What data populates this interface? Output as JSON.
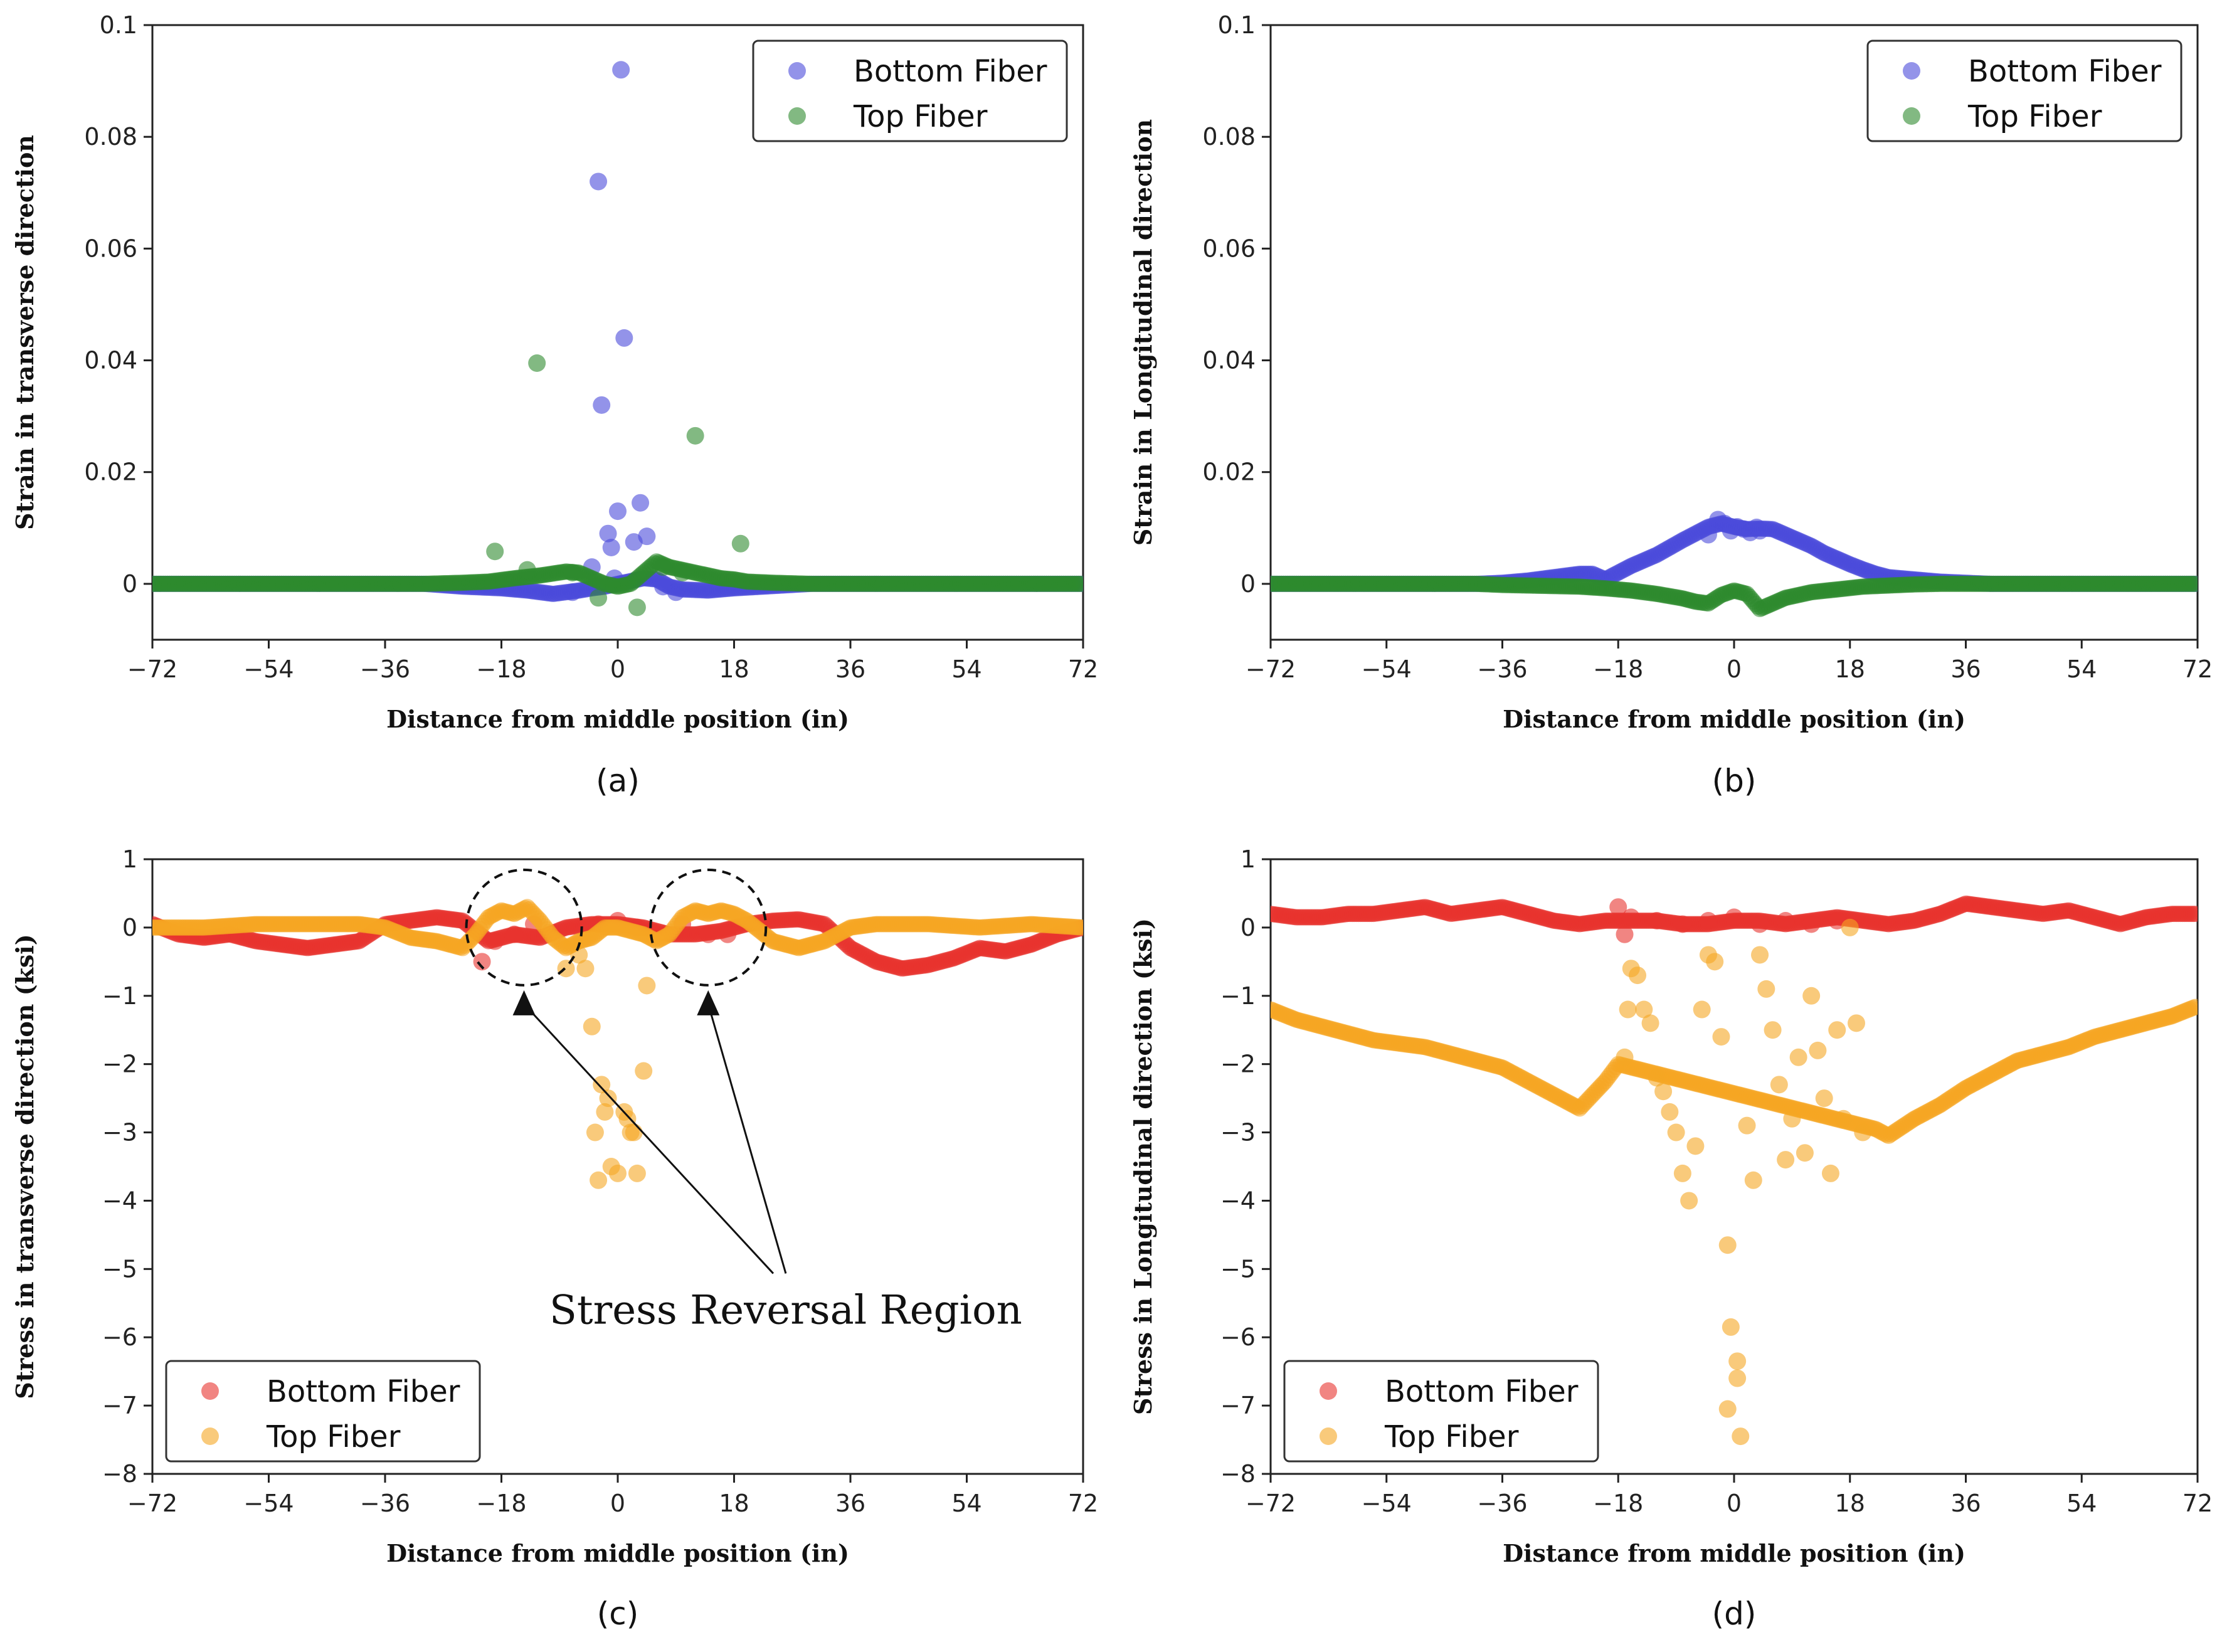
{
  "figure": {
    "captions": [
      "(a)",
      "(b)",
      "(c)",
      "(d)"
    ],
    "annotation": "Stress Reversal Region"
  },
  "chart_data": [
    {
      "type": "scatter",
      "caption": "(a)",
      "xlabel": "Distance from middle position (in)",
      "ylabel": "Strain in transverse direction",
      "xlim": [
        -72,
        72
      ],
      "ylim": [
        -0.01,
        0.1
      ],
      "xticks": [
        -72,
        -54,
        -36,
        -18,
        0,
        18,
        36,
        54,
        72
      ],
      "yticks": [
        0,
        0.02,
        0.04,
        0.06,
        0.08,
        0.1
      ],
      "ytick_labels": [
        "0",
        "0.02",
        "0.04",
        "0.06",
        "0.08",
        "0.1"
      ],
      "legend_position": "top-right",
      "series": [
        {
          "name": "Bottom Fiber",
          "color": "#4b4bdb",
          "x": [
            0.5,
            -3,
            1,
            -2.5,
            0,
            -1.5,
            -1,
            3.5,
            4.5,
            2.5,
            -0.5,
            -4,
            -7,
            7,
            9
          ],
          "y": [
            0.092,
            0.072,
            0.044,
            0.032,
            0.013,
            0.009,
            0.0065,
            0.0145,
            0.0085,
            0.0075,
            0.001,
            0.003,
            -0.0015,
            -0.0005,
            -0.0015
          ],
          "curve": {
            "x": [
              -72,
              -30,
              -24,
              -18,
              -14,
              -10,
              -8,
              -6,
              -4,
              -2,
              0,
              2,
              4,
              6,
              8,
              10,
              14,
              18,
              24,
              30,
              72
            ],
            "y": [
              0,
              0,
              -0.0005,
              -0.0008,
              -0.0012,
              -0.0018,
              -0.0015,
              -0.0012,
              -0.0008,
              -0.0005,
              0,
              0.0005,
              0.001,
              0.0008,
              -0.0005,
              -0.001,
              -0.0012,
              -0.0008,
              -0.0004,
              0,
              0
            ]
          }
        },
        {
          "name": "Top Fiber",
          "color": "#2e8b2e",
          "x": [
            -12.5,
            12,
            -19,
            19,
            -3,
            3,
            -14,
            -7,
            7,
            10
          ],
          "y": [
            0.0395,
            0.0265,
            0.0058,
            0.0072,
            -0.0025,
            -0.0042,
            0.0025,
            0.002,
            0.003,
            0.002
          ],
          "curve": {
            "x": [
              -72,
              -30,
              -24,
              -20,
              -16,
              -12,
              -8,
              -6,
              -4,
              -2,
              0,
              2,
              4,
              6,
              8,
              10,
              12,
              14,
              16,
              18,
              20,
              24,
              30,
              72
            ],
            "y": [
              0,
              0,
              0.0002,
              0.0004,
              0.001,
              0.0015,
              0.0022,
              0.002,
              0.001,
              0,
              -0.0005,
              0,
              0.002,
              0.004,
              0.003,
              0.0025,
              0.002,
              0.0015,
              0.001,
              0.0008,
              0.0004,
              0.0002,
              0,
              0
            ]
          }
        }
      ]
    },
    {
      "type": "scatter",
      "caption": "(b)",
      "xlabel": "Distance from middle position (in)",
      "ylabel": "Strain in Longitudinal direction",
      "xlim": [
        -72,
        72
      ],
      "ylim": [
        -0.01,
        0.1
      ],
      "xticks": [
        -72,
        -54,
        -36,
        -18,
        0,
        18,
        36,
        54,
        72
      ],
      "yticks": [
        0,
        0.02,
        0.04,
        0.06,
        0.08,
        0.1
      ],
      "ytick_labels": [
        "0",
        "0.02",
        "0.04",
        "0.06",
        "0.08",
        "0.1"
      ],
      "legend_position": "top-right",
      "series": [
        {
          "name": "Bottom Fiber",
          "color": "#4b4bdb",
          "x": [
            -2.5,
            -1.5,
            -0.5,
            0.5,
            1.5,
            2.5,
            3.5,
            -4,
            4
          ],
          "y": [
            0.0115,
            0.0108,
            0.0095,
            0.0102,
            0.0098,
            0.0092,
            0.0101,
            0.0088,
            0.0095
          ],
          "curve": {
            "x": [
              -72,
              -40,
              -36,
              -32,
              -28,
              -24,
              -22,
              -20,
              -18,
              -16,
              -14,
              -12,
              -10,
              -8,
              -6,
              -4,
              -2,
              0,
              2,
              4,
              6,
              8,
              10,
              12,
              14,
              16,
              18,
              20,
              22,
              24,
              28,
              32,
              36,
              40,
              72
            ],
            "y": [
              0,
              0,
              0.0002,
              0.0006,
              0.0012,
              0.0018,
              0.0018,
              0.0008,
              0.002,
              0.0032,
              0.0042,
              0.0052,
              0.0065,
              0.0078,
              0.009,
              0.0102,
              0.0108,
              0.0102,
              0.0098,
              0.0099,
              0.0098,
              0.0088,
              0.0078,
              0.0068,
              0.0055,
              0.0045,
              0.0035,
              0.0026,
              0.0018,
              0.0012,
              0.0008,
              0.0004,
              0.0002,
              0,
              0
            ]
          }
        },
        {
          "name": "Top Fiber",
          "color": "#2e8b2e",
          "x": [],
          "y": [],
          "curve": {
            "x": [
              -72,
              -40,
              -36,
              -32,
              -28,
              -24,
              -20,
              -16,
              -12,
              -8,
              -6,
              -4,
              -2,
              0,
              2,
              4,
              6,
              8,
              12,
              16,
              20,
              24,
              28,
              32,
              72
            ],
            "y": [
              0,
              0,
              -0.0002,
              -0.0003,
              -0.0004,
              -0.0005,
              -0.0008,
              -0.0012,
              -0.0018,
              -0.0026,
              -0.0032,
              -0.0035,
              -0.002,
              -0.0012,
              -0.0018,
              -0.0045,
              -0.0035,
              -0.0025,
              -0.0015,
              -0.001,
              -0.0005,
              -0.0003,
              -0.0001,
              0,
              0
            ]
          }
        }
      ]
    },
    {
      "type": "scatter",
      "caption": "(c)",
      "xlabel": "Distance from middle position (in)",
      "ylabel": "Stress in transverse direction (ksi)",
      "xlim": [
        -72,
        72
      ],
      "ylim": [
        -8,
        1
      ],
      "xticks": [
        -72,
        -54,
        -36,
        -18,
        0,
        18,
        36,
        54,
        72
      ],
      "yticks": [
        -8,
        -7,
        -6,
        -5,
        -4,
        -3,
        -2,
        -1,
        0,
        1
      ],
      "ytick_labels": [
        "−8",
        "−7",
        "−6",
        "−5",
        "−4",
        "−3",
        "−2",
        "−1",
        "0",
        "1"
      ],
      "legend_position": "bottom-left",
      "annotation": {
        "text": "Stress Reversal Region",
        "circles_at": [
          [
            -14.5,
            0
          ],
          [
            14,
            0
          ]
        ],
        "text_at": [
          26,
          -5.8
        ]
      },
      "series": [
        {
          "name": "Bottom Fiber",
          "color": "#e8332e",
          "x": [
            -21,
            -19,
            -16,
            -13,
            -3,
            0,
            3,
            10,
            14,
            17
          ],
          "y": [
            -0.5,
            -0.2,
            -0.1,
            0.05,
            0.05,
            0.1,
            0,
            0.05,
            -0.1,
            -0.1
          ],
          "curve": {
            "x": [
              -72,
              -68,
              -64,
              -60,
              -56,
              -52,
              -48,
              -44,
              -40,
              -36,
              -32,
              -28,
              -24,
              -20,
              -16,
              -12,
              -8,
              -4,
              0,
              4,
              8,
              12,
              16,
              20,
              24,
              28,
              32,
              36,
              40,
              44,
              48,
              52,
              56,
              60,
              64,
              68,
              72
            ],
            "y": [
              0.05,
              -0.1,
              -0.15,
              -0.1,
              -0.2,
              -0.25,
              -0.3,
              -0.25,
              -0.2,
              0.05,
              0.1,
              0.15,
              0.1,
              -0.2,
              -0.1,
              -0.15,
              0,
              0.05,
              0.05,
              0,
              -0.1,
              -0.1,
              -0.05,
              0.05,
              0.1,
              0.12,
              0.05,
              -0.3,
              -0.5,
              -0.6,
              -0.55,
              -0.45,
              -0.3,
              -0.35,
              -0.25,
              -0.1,
              0.0
            ]
          }
        },
        {
          "name": "Top Fiber",
          "color": "#f5a623",
          "x": [
            -4,
            -3,
            -3.5,
            -2,
            -1,
            0,
            1,
            2,
            3,
            4,
            -2.5,
            -1.5,
            1.5,
            2.5,
            -5,
            4.5,
            -8,
            -6
          ],
          "y": [
            -1.45,
            -3.7,
            -3.0,
            -2.7,
            -3.5,
            -3.6,
            -2.7,
            -3.0,
            -3.6,
            -2.1,
            -2.3,
            -2.5,
            -2.8,
            -3.0,
            -0.6,
            -0.85,
            -0.6,
            -0.4
          ],
          "curve": {
            "x": [
              -72,
              -64,
              -56,
              -48,
              -40,
              -36,
              -32,
              -28,
              -26,
              -24,
              -22,
              -20,
              -18,
              -16,
              -14,
              -12,
              -10,
              -8,
              -6,
              -4,
              -2,
              0,
              2,
              4,
              6,
              8,
              10,
              12,
              14,
              16,
              18,
              20,
              22,
              24,
              26,
              28,
              32,
              36,
              40,
              48,
              56,
              64,
              72
            ],
            "y": [
              0,
              0,
              0.05,
              0.05,
              0.05,
              0,
              -0.15,
              -0.2,
              -0.25,
              -0.3,
              -0.1,
              0.15,
              0.25,
              0.2,
              0.3,
              0.1,
              -0.15,
              -0.3,
              -0.2,
              -0.15,
              0,
              0,
              -0.05,
              -0.1,
              -0.2,
              -0.1,
              0.15,
              0.25,
              0.2,
              0.25,
              0.2,
              0.1,
              -0.05,
              -0.2,
              -0.25,
              -0.3,
              -0.2,
              0,
              0.05,
              0.05,
              0,
              0.05,
              0
            ]
          }
        }
      ]
    },
    {
      "type": "scatter",
      "caption": "(d)",
      "xlabel": "Distance from middle position (in)",
      "ylabel": "Stress in Longitudinal direction (ksi)",
      "xlim": [
        -72,
        72
      ],
      "ylim": [
        -8,
        1
      ],
      "xticks": [
        -72,
        -54,
        -36,
        -18,
        0,
        18,
        36,
        54,
        72
      ],
      "yticks": [
        -8,
        -7,
        -6,
        -5,
        -4,
        -3,
        -2,
        -1,
        0,
        1
      ],
      "ytick_labels": [
        "−8",
        "−7",
        "−6",
        "−5",
        "−4",
        "−3",
        "−2",
        "−1",
        "0",
        "1"
      ],
      "legend_position": "bottom-left",
      "series": [
        {
          "name": "Bottom Fiber",
          "color": "#e8332e",
          "x": [
            -18,
            -17,
            -16,
            -12,
            -8,
            -4,
            0,
            4,
            8,
            12,
            16
          ],
          "y": [
            0.3,
            -0.1,
            0.15,
            0.1,
            0.05,
            0.1,
            0.15,
            0.05,
            0.1,
            0.05,
            0.1
          ],
          "curve": {
            "x": [
              -72,
              -68,
              -64,
              -60,
              -56,
              -52,
              -48,
              -44,
              -40,
              -36,
              -32,
              -28,
              -24,
              -20,
              -16,
              -12,
              -8,
              -4,
              0,
              4,
              8,
              12,
              16,
              20,
              24,
              28,
              32,
              36,
              40,
              44,
              48,
              52,
              56,
              60,
              64,
              68,
              72
            ],
            "y": [
              0.2,
              0.15,
              0.15,
              0.2,
              0.2,
              0.25,
              0.3,
              0.2,
              0.25,
              0.3,
              0.2,
              0.1,
              0.05,
              0.1,
              0.1,
              0.1,
              0.05,
              0.05,
              0.1,
              0.1,
              0.05,
              0.1,
              0.15,
              0.1,
              0.05,
              0.1,
              0.2,
              0.35,
              0.3,
              0.25,
              0.2,
              0.25,
              0.15,
              0.05,
              0.15,
              0.2,
              0.2
            ]
          }
        },
        {
          "name": "Top Fiber",
          "color": "#f5a623",
          "x": [
            -1,
            -0.5,
            0.5,
            -1,
            0.5,
            1,
            -16,
            -15,
            -14,
            -13,
            -12,
            -11,
            -10,
            -9,
            -8,
            -7,
            -6,
            -5,
            -4,
            -3,
            -2,
            -17,
            -16.5,
            8,
            9,
            10,
            11,
            12,
            13,
            14,
            15,
            16,
            17,
            18,
            19,
            20,
            4,
            5,
            6,
            7,
            3,
            2
          ],
          "y": [
            -4.65,
            -5.85,
            -6.35,
            -7.05,
            -6.6,
            -7.45,
            -0.6,
            -0.7,
            -1.2,
            -1.4,
            -2.2,
            -2.4,
            -2.7,
            -3.0,
            -3.6,
            -4.0,
            -3.2,
            -1.2,
            -0.4,
            -0.5,
            -1.6,
            -1.9,
            -1.2,
            -3.4,
            -2.8,
            -1.9,
            -3.3,
            -1.0,
            -1.8,
            -2.5,
            -3.6,
            -1.5,
            -2.8,
            -0.0,
            -1.4,
            -3.0,
            -0.4,
            -0.9,
            -1.5,
            -2.3,
            -3.7,
            -2.9
          ],
          "curve": {
            "x": [
              -72,
              -68,
              -64,
              -60,
              -56,
              -52,
              -48,
              -44,
              -40,
              -36,
              -32,
              -28,
              -24,
              -20,
              -18,
              22,
              24,
              28,
              32,
              36,
              40,
              44,
              48,
              52,
              56,
              60,
              64,
              68,
              72
            ],
            "y": [
              -1.2,
              -1.35,
              -1.45,
              -1.55,
              -1.65,
              -1.7,
              -1.75,
              -1.85,
              -1.95,
              -2.05,
              -2.25,
              -2.45,
              -2.65,
              -2.25,
              -2.0,
              -2.95,
              -3.05,
              -2.8,
              -2.6,
              -2.35,
              -2.15,
              -1.95,
              -1.85,
              -1.75,
              -1.6,
              -1.5,
              -1.4,
              -1.3,
              -1.15
            ]
          }
        }
      ]
    }
  ]
}
